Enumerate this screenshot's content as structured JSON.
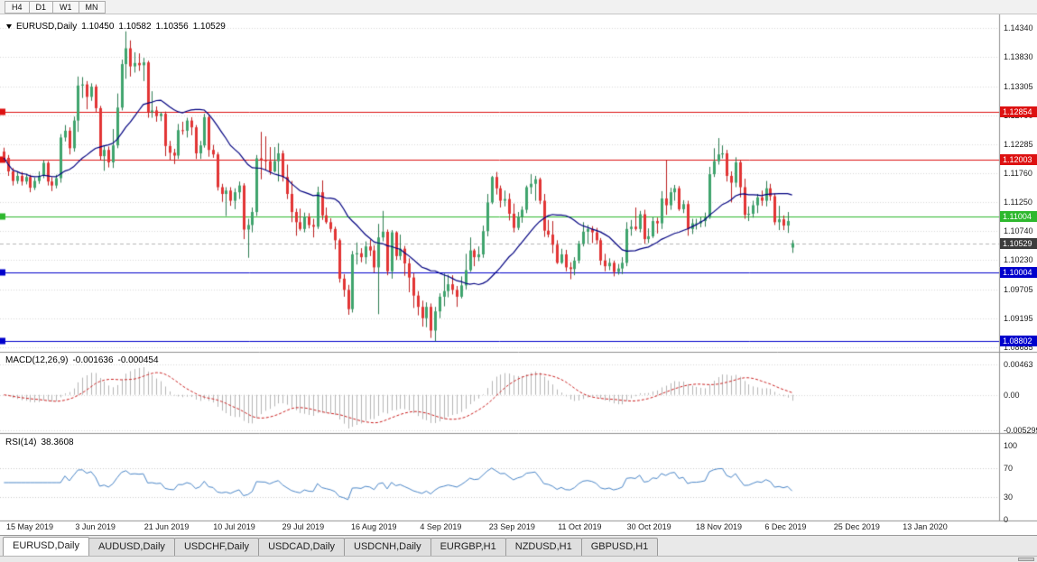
{
  "toolbar": {
    "timeframes": [
      {
        "label": "H4"
      },
      {
        "label": "D1"
      },
      {
        "label": "W1"
      },
      {
        "label": "MN"
      }
    ]
  },
  "header": {
    "symbol": "EURUSD,Daily",
    "open": "1.10450",
    "high": "1.10582",
    "low": "1.10356",
    "close": "1.10529"
  },
  "chart_data": {
    "type": "candlestick",
    "symbol": "EURUSD",
    "timeframe": "Daily",
    "price_axis": {
      "min": 1.0862,
      "max": 1.1458,
      "ticks": [
        {
          "value": 1.1434,
          "label": "1.14340"
        },
        {
          "value": 1.1383,
          "label": "1.13830"
        },
        {
          "value": 1.13305,
          "label": "1.13305"
        },
        {
          "value": 1.1279,
          "label": "1.12790"
        },
        {
          "value": 1.12285,
          "label": "1.12285"
        },
        {
          "value": 1.1176,
          "label": "1.11760"
        },
        {
          "value": 1.1125,
          "label": "1.11250"
        },
        {
          "value": 1.1074,
          "label": "1.10740"
        },
        {
          "value": 1.1023,
          "label": "1.10230"
        },
        {
          "value": 1.09705,
          "label": "1.09705"
        },
        {
          "value": 1.09195,
          "label": "1.09195"
        },
        {
          "value": 1.08685,
          "label": "1.08685"
        }
      ]
    },
    "hlines": [
      {
        "value": 1.12854,
        "label": "1.12854",
        "color": "#dd1111"
      },
      {
        "value": 1.12003,
        "label": "1.12003",
        "color": "#dd1111"
      },
      {
        "value": 1.11004,
        "label": "1.11004",
        "color": "#2eb82e"
      },
      {
        "value": 1.10004,
        "label": "1.10004",
        "color": "#0000cc"
      },
      {
        "value": 1.08802,
        "label": "1.08802",
        "color": "#0000cc"
      }
    ],
    "current_price": {
      "value": 1.10529,
      "label": "1.10529",
      "color": "#3c3c3c"
    },
    "ma": {
      "period": 20,
      "color": "#000080"
    },
    "colors": {
      "up": "#3fa46d",
      "up_wick": "#2e7d52",
      "down": "#e23434",
      "down_wick": "#bb2020",
      "grid": "#d8d8d8",
      "separator": "#909090",
      "axis_text": "#1c1c1c"
    },
    "candles": [
      [
        1.1215,
        1.1222,
        1.1198,
        1.1204
      ],
      [
        1.1204,
        1.1209,
        1.1172,
        1.118
      ],
      [
        1.118,
        1.1186,
        1.1155,
        1.1163
      ],
      [
        1.1163,
        1.118,
        1.1158,
        1.1172
      ],
      [
        1.1172,
        1.1179,
        1.1155,
        1.1162
      ],
      [
        1.1162,
        1.1176,
        1.1157,
        1.117
      ],
      [
        1.117,
        1.1174,
        1.1143,
        1.1151
      ],
      [
        1.1151,
        1.1169,
        1.1147,
        1.1163
      ],
      [
        1.1163,
        1.118,
        1.1158,
        1.1172
      ],
      [
        1.1172,
        1.12,
        1.1168,
        1.1195
      ],
      [
        1.1195,
        1.1198,
        1.1155,
        1.1162
      ],
      [
        1.1162,
        1.117,
        1.1145,
        1.1155
      ],
      [
        1.1155,
        1.1174,
        1.115,
        1.1168
      ],
      [
        1.1168,
        1.1246,
        1.116,
        1.124
      ],
      [
        1.124,
        1.1262,
        1.1233,
        1.1252
      ],
      [
        1.1252,
        1.1258,
        1.121,
        1.1221
      ],
      [
        1.1221,
        1.1277,
        1.1215,
        1.127
      ],
      [
        1.127,
        1.1348,
        1.125,
        1.1332
      ],
      [
        1.1332,
        1.1347,
        1.131,
        1.1334
      ],
      [
        1.1334,
        1.134,
        1.129,
        1.1312
      ],
      [
        1.1312,
        1.1336,
        1.1305,
        1.133
      ],
      [
        1.133,
        1.1334,
        1.1284,
        1.1292
      ],
      [
        1.1292,
        1.1296,
        1.12,
        1.1207
      ],
      [
        1.1207,
        1.1225,
        1.1181,
        1.1218
      ],
      [
        1.1218,
        1.1224,
        1.1187,
        1.1196
      ],
      [
        1.1196,
        1.1255,
        1.1186,
        1.1226
      ],
      [
        1.1226,
        1.1318,
        1.1221,
        1.1293
      ],
      [
        1.1293,
        1.1378,
        1.1288,
        1.137
      ],
      [
        1.137,
        1.1428,
        1.1344,
        1.1398
      ],
      [
        1.1398,
        1.1412,
        1.1348,
        1.1366
      ],
      [
        1.1366,
        1.1391,
        1.1355,
        1.1372
      ],
      [
        1.1372,
        1.1389,
        1.1358,
        1.1368
      ],
      [
        1.1368,
        1.1381,
        1.134,
        1.1373
      ],
      [
        1.1373,
        1.1376,
        1.1275,
        1.1285
      ],
      [
        1.1285,
        1.1322,
        1.1275,
        1.1288
      ],
      [
        1.1288,
        1.1295,
        1.1268,
        1.1278
      ],
      [
        1.1278,
        1.1285,
        1.1269,
        1.1282
      ],
      [
        1.1282,
        1.1286,
        1.1207,
        1.1225
      ],
      [
        1.1225,
        1.1234,
        1.12,
        1.1213
      ],
      [
        1.1213,
        1.122,
        1.1193,
        1.1208
      ],
      [
        1.1208,
        1.1264,
        1.1202,
        1.1253
      ],
      [
        1.1253,
        1.1268,
        1.1245,
        1.1252
      ],
      [
        1.1252,
        1.1275,
        1.124,
        1.127
      ],
      [
        1.127,
        1.1276,
        1.1244,
        1.1258
      ],
      [
        1.1258,
        1.1262,
        1.1202,
        1.1212
      ],
      [
        1.1212,
        1.1234,
        1.1202,
        1.1226
      ],
      [
        1.1226,
        1.1282,
        1.1222,
        1.1276
      ],
      [
        1.1276,
        1.128,
        1.1206,
        1.1218
      ],
      [
        1.1218,
        1.1227,
        1.1204,
        1.121
      ],
      [
        1.121,
        1.1214,
        1.1146,
        1.1152
      ],
      [
        1.1152,
        1.1158,
        1.1126,
        1.114
      ],
      [
        1.114,
        1.1152,
        1.1101,
        1.1146
      ],
      [
        1.1146,
        1.1152,
        1.1119,
        1.1128
      ],
      [
        1.1128,
        1.115,
        1.1113,
        1.1143
      ],
      [
        1.1143,
        1.1162,
        1.1131,
        1.1155
      ],
      [
        1.1155,
        1.1159,
        1.106,
        1.1077
      ],
      [
        1.1077,
        1.1096,
        1.1027,
        1.1085
      ],
      [
        1.1085,
        1.1116,
        1.1072,
        1.1108
      ],
      [
        1.1108,
        1.1209,
        1.1101,
        1.1203
      ],
      [
        1.1203,
        1.125,
        1.1166,
        1.12
      ],
      [
        1.12,
        1.1242,
        1.1183,
        1.1198
      ],
      [
        1.1198,
        1.1223,
        1.1174,
        1.118
      ],
      [
        1.118,
        1.1223,
        1.1178,
        1.1198
      ],
      [
        1.1198,
        1.123,
        1.1162,
        1.1212
      ],
      [
        1.1212,
        1.1217,
        1.1162,
        1.117
      ],
      [
        1.117,
        1.1192,
        1.1131,
        1.114
      ],
      [
        1.114,
        1.1163,
        1.109,
        1.1108
      ],
      [
        1.1108,
        1.1114,
        1.1066,
        1.109
      ],
      [
        1.109,
        1.1114,
        1.1075,
        1.1078
      ],
      [
        1.1078,
        1.1107,
        1.1072,
        1.11
      ],
      [
        1.11,
        1.1106,
        1.1079,
        1.1085
      ],
      [
        1.1085,
        1.1096,
        1.1063,
        1.1082
      ],
      [
        1.1082,
        1.1153,
        1.1078,
        1.1143
      ],
      [
        1.1143,
        1.1164,
        1.1094,
        1.1102
      ],
      [
        1.1102,
        1.1116,
        1.1087,
        1.109
      ],
      [
        1.109,
        1.1097,
        1.1072,
        1.1078
      ],
      [
        1.1078,
        1.1082,
        1.1042,
        1.1058
      ],
      [
        1.1058,
        1.1061,
        1.0983,
        1.099
      ],
      [
        1.099,
        1.0998,
        1.0958,
        1.097
      ],
      [
        1.097,
        1.0979,
        1.0926,
        1.0936
      ],
      [
        1.0936,
        1.1039,
        1.093,
        1.1033
      ],
      [
        1.1033,
        1.1054,
        1.1015,
        1.1035
      ],
      [
        1.1035,
        1.1044,
        1.1019,
        1.1028
      ],
      [
        1.1028,
        1.1056,
        1.1016,
        1.1047
      ],
      [
        1.1047,
        1.1059,
        1.103,
        1.104
      ],
      [
        1.104,
        1.1049,
        1.1001,
        1.101
      ],
      [
        1.101,
        1.1087,
        1.0927,
        1.1063
      ],
      [
        1.1063,
        1.111,
        1.1056,
        1.1073
      ],
      [
        1.1073,
        1.1077,
        1.0996,
        1.1003
      ],
      [
        1.1003,
        1.1076,
        1.099,
        1.1072
      ],
      [
        1.1072,
        1.1074,
        1.1023,
        1.103
      ],
      [
        1.103,
        1.1068,
        1.1023,
        1.1043
      ],
      [
        1.1043,
        1.1048,
        1.0995,
        1.1017
      ],
      [
        1.1017,
        1.1026,
        1.0966,
        1.0992
      ],
      [
        1.0992,
        1.1,
        1.0938,
        1.096
      ],
      [
        1.096,
        1.0968,
        1.0925,
        1.094
      ],
      [
        1.094,
        1.0951,
        1.0905,
        1.092
      ],
      [
        1.092,
        1.0948,
        1.0904,
        1.094
      ],
      [
        1.094,
        1.0946,
        1.0885,
        1.0898
      ],
      [
        1.0898,
        1.094,
        1.0879,
        1.0932
      ],
      [
        1.0932,
        1.0964,
        1.092,
        1.0958
      ],
      [
        1.0958,
        1.0999,
        1.0941,
        1.0968
      ],
      [
        1.0968,
        1.0997,
        1.0957,
        1.098
      ],
      [
        1.098,
        1.0996,
        1.0962,
        1.097
      ],
      [
        1.097,
        1.0977,
        1.094,
        1.0958
      ],
      [
        1.0958,
        1.0994,
        1.0955,
        1.0978
      ],
      [
        1.0978,
        1.1034,
        1.0971,
        1.1005
      ],
      [
        1.1005,
        1.1063,
        1.1002,
        1.104
      ],
      [
        1.104,
        1.1043,
        1.1012,
        1.1028
      ],
      [
        1.1028,
        1.1047,
        1.1021,
        1.1033
      ],
      [
        1.1033,
        1.1084,
        1.1027,
        1.1074
      ],
      [
        1.1074,
        1.114,
        1.1065,
        1.1125
      ],
      [
        1.1125,
        1.1172,
        1.1122,
        1.117
      ],
      [
        1.117,
        1.1179,
        1.1139,
        1.115
      ],
      [
        1.115,
        1.1155,
        1.1116,
        1.1128
      ],
      [
        1.1128,
        1.1146,
        1.1118,
        1.1131
      ],
      [
        1.1131,
        1.1141,
        1.1093,
        1.1105
      ],
      [
        1.1105,
        1.1123,
        1.1072,
        1.108
      ],
      [
        1.108,
        1.1108,
        1.1076,
        1.11
      ],
      [
        1.11,
        1.1118,
        1.1089,
        1.1112
      ],
      [
        1.1112,
        1.1155,
        1.1106,
        1.1152
      ],
      [
        1.1152,
        1.1175,
        1.114,
        1.1158
      ],
      [
        1.1158,
        1.1172,
        1.1128,
        1.1166
      ],
      [
        1.1166,
        1.1169,
        1.1122,
        1.1128
      ],
      [
        1.1128,
        1.114,
        1.1064,
        1.1075
      ],
      [
        1.1075,
        1.1094,
        1.1063,
        1.1068
      ],
      [
        1.1068,
        1.1092,
        1.1035,
        1.105
      ],
      [
        1.105,
        1.1058,
        1.1016,
        1.1018
      ],
      [
        1.1018,
        1.1043,
        1.1016,
        1.1033
      ],
      [
        1.1033,
        1.1041,
        1.1003,
        1.101
      ],
      [
        1.101,
        1.1019,
        1.0989,
        1.1007
      ],
      [
        1.1007,
        1.1028,
        1.0996,
        1.1022
      ],
      [
        1.1022,
        1.1057,
        1.1017,
        1.1052
      ],
      [
        1.1052,
        1.109,
        1.1047,
        1.1073
      ],
      [
        1.1073,
        1.1085,
        1.1052,
        1.1078
      ],
      [
        1.1078,
        1.1083,
        1.1053,
        1.1072
      ],
      [
        1.1072,
        1.108,
        1.1051,
        1.1058
      ],
      [
        1.1058,
        1.1062,
        1.1014,
        1.1022
      ],
      [
        1.1022,
        1.1034,
        1.1003,
        1.1012
      ],
      [
        1.1012,
        1.1026,
        1.1005,
        1.1018
      ],
      [
        1.1018,
        1.1022,
        1.0994,
        1.1002
      ],
      [
        1.1002,
        1.1016,
        1.0997,
        1.1008
      ],
      [
        1.1008,
        1.1028,
        1.0998,
        1.1018
      ],
      [
        1.1018,
        1.109,
        1.1012,
        1.1078
      ],
      [
        1.1078,
        1.1094,
        1.1066,
        1.1082
      ],
      [
        1.1082,
        1.1116,
        1.1075,
        1.1078
      ],
      [
        1.1078,
        1.111,
        1.1072,
        1.1104
      ],
      [
        1.1104,
        1.1112,
        1.1052,
        1.106
      ],
      [
        1.106,
        1.1079,
        1.1053,
        1.1065
      ],
      [
        1.1065,
        1.1099,
        1.1062,
        1.1092
      ],
      [
        1.1092,
        1.1098,
        1.107,
        1.1088
      ],
      [
        1.1088,
        1.1145,
        1.1078,
        1.1132
      ],
      [
        1.1132,
        1.12,
        1.1103,
        1.112
      ],
      [
        1.112,
        1.1151,
        1.1112,
        1.1143
      ],
      [
        1.1143,
        1.1156,
        1.1128,
        1.115
      ],
      [
        1.115,
        1.1154,
        1.111,
        1.1113
      ],
      [
        1.1113,
        1.1129,
        1.1106,
        1.1122
      ],
      [
        1.1122,
        1.1128,
        1.1066,
        1.1078
      ],
      [
        1.1078,
        1.1096,
        1.1069,
        1.1088
      ],
      [
        1.1088,
        1.1096,
        1.1077,
        1.1088
      ],
      [
        1.1088,
        1.1099,
        1.1081,
        1.1092
      ],
      [
        1.1092,
        1.1107,
        1.1082,
        1.1098
      ],
      [
        1.1098,
        1.1188,
        1.1096,
        1.1175
      ],
      [
        1.1175,
        1.1221,
        1.117,
        1.1198
      ],
      [
        1.1198,
        1.1239,
        1.1192,
        1.121
      ],
      [
        1.121,
        1.1226,
        1.1203,
        1.1212
      ],
      [
        1.1212,
        1.1218,
        1.1162,
        1.1172
      ],
      [
        1.1172,
        1.118,
        1.1125,
        1.116
      ],
      [
        1.116,
        1.1205,
        1.1152,
        1.1196
      ],
      [
        1.1196,
        1.1199,
        1.1134,
        1.1152
      ],
      [
        1.1152,
        1.1167,
        1.1096,
        1.1103
      ],
      [
        1.1103,
        1.1118,
        1.1092,
        1.1105
      ],
      [
        1.1105,
        1.1128,
        1.1098,
        1.112
      ],
      [
        1.112,
        1.114,
        1.1106,
        1.1134
      ],
      [
        1.1134,
        1.1146,
        1.1119,
        1.1128
      ],
      [
        1.1128,
        1.1163,
        1.1118,
        1.115
      ],
      [
        1.115,
        1.1158,
        1.1128,
        1.1136
      ],
      [
        1.1136,
        1.1141,
        1.1085,
        1.109
      ],
      [
        1.109,
        1.1119,
        1.1076,
        1.1095
      ],
      [
        1.1095,
        1.1102,
        1.1076,
        1.1084
      ],
      [
        1.1084,
        1.1108,
        1.1071,
        1.1092
      ],
      [
        1.1045,
        1.10582,
        1.10356,
        1.10529
      ]
    ]
  },
  "macd": {
    "label": "MACD(12,26,9)",
    "value_main": "-0.001636",
    "value_signal": "-0.000454",
    "params": {
      "fast": 12,
      "slow": 26,
      "signal": 9
    },
    "range": {
      "min": -0.0056,
      "max": 0.0062
    },
    "ticks": [
      {
        "value": 0.00463,
        "label": "0.00463"
      },
      {
        "value": 0,
        "label": "0.00"
      },
      {
        "value": -0.005299,
        "label": "-0.005299"
      }
    ],
    "colors": {
      "histogram": "#b5b5b5",
      "signal": "#cc2222"
    }
  },
  "rsi": {
    "label": "RSI(14)",
    "value": "38.3608",
    "period": 14,
    "levels": [
      70,
      30
    ],
    "ticks": [
      {
        "value": 100,
        "label": "100"
      },
      {
        "value": 70,
        "label": "70"
      },
      {
        "value": 30,
        "label": "30"
      },
      {
        "value": 0,
        "label": "0"
      }
    ],
    "color": "#4a86c8"
  },
  "time_axis": {
    "labels": [
      "15 May 2019",
      "3 Jun 2019",
      "21 Jun 2019",
      "10 Jul 2019",
      "29 Jul 2019",
      "16 Aug 2019",
      "4 Sep 2019",
      "23 Sep 2019",
      "11 Oct 2019",
      "30 Oct 2019",
      "18 Nov 2019",
      "6 Dec 2019",
      "25 Dec 2019",
      "13 Jan 2020"
    ]
  },
  "tabs": [
    {
      "label": "EURUSD,Daily",
      "active": true
    },
    {
      "label": "AUDUSD,Daily",
      "active": false
    },
    {
      "label": "USDCHF,Daily",
      "active": false
    },
    {
      "label": "USDCAD,Daily",
      "active": false
    },
    {
      "label": "USDCNH,Daily",
      "active": false
    },
    {
      "label": "EURGBP,H1",
      "active": false
    },
    {
      "label": "NZDUSD,H1",
      "active": false
    },
    {
      "label": "GBPUSD,H1",
      "active": false
    }
  ]
}
